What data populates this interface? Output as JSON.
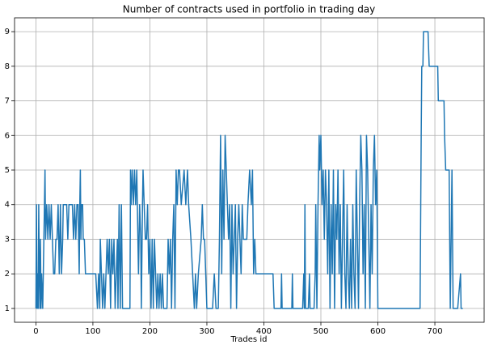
{
  "chart_data": {
    "type": "line",
    "title": "Number of contracts used in portfolio in trading day",
    "x_label": "Trades id",
    "x": [
      0,
      1,
      2,
      3,
      4,
      5,
      6,
      7,
      8,
      9,
      10,
      12,
      14,
      16,
      17,
      19,
      21,
      23,
      25,
      27,
      29,
      31,
      33,
      35,
      37,
      39,
      41,
      43,
      45,
      47,
      48,
      50,
      52,
      54,
      56,
      58,
      60,
      62,
      64,
      66,
      68,
      70,
      72,
      74,
      76,
      77,
      78,
      79,
      80,
      82,
      83,
      85,
      87,
      90,
      95,
      100,
      105,
      108,
      110,
      112,
      113,
      115,
      117,
      119,
      121,
      123,
      125,
      127,
      129,
      131,
      133,
      135,
      137,
      139,
      141,
      143,
      144,
      146,
      148,
      150,
      152,
      155,
      160,
      165,
      166,
      167,
      169,
      171,
      173,
      175,
      177,
      178,
      180,
      182,
      184,
      185,
      187,
      188,
      190,
      192,
      194,
      196,
      198,
      200,
      202,
      204,
      206,
      208,
      210,
      212,
      214,
      216,
      218,
      220,
      222,
      224,
      226,
      228,
      230,
      232,
      234,
      236,
      238,
      240,
      242,
      244,
      246,
      248,
      250,
      252,
      255,
      260,
      263,
      266,
      268,
      272,
      275,
      278,
      280,
      282,
      285,
      290,
      292,
      294,
      296,
      298,
      300,
      305,
      310,
      313,
      316,
      320,
      322,
      324,
      326,
      328,
      330,
      332,
      334,
      336,
      338,
      340,
      342,
      344,
      346,
      348,
      350,
      352,
      354,
      356,
      358,
      360,
      362,
      364,
      366,
      370,
      372,
      375,
      378,
      380,
      382,
      384,
      386,
      388,
      395,
      400,
      410,
      416,
      418,
      425,
      430,
      431,
      432,
      440,
      449,
      450,
      451,
      460,
      468,
      470,
      471,
      472,
      473,
      478,
      480,
      481,
      488,
      490,
      491,
      493,
      495,
      497,
      498,
      500,
      502,
      504,
      506,
      508,
      510,
      512,
      514,
      516,
      518,
      520,
      522,
      524,
      526,
      528,
      530,
      532,
      534,
      536,
      538,
      540,
      542,
      544,
      546,
      548,
      550,
      552,
      554,
      556,
      558,
      560,
      562,
      564,
      566,
      568,
      570,
      572,
      574,
      576,
      578,
      580,
      582,
      584,
      586,
      588,
      590,
      592,
      594,
      596,
      598,
      600,
      610,
      620,
      630,
      640,
      650,
      660,
      670,
      674,
      676,
      677,
      679,
      680,
      684,
      688,
      690,
      695,
      700,
      705,
      706,
      712,
      716,
      717,
      719,
      722,
      725,
      727,
      730,
      732,
      740,
      745,
      746,
      749
    ],
    "values": [
      1,
      4,
      1,
      2,
      1,
      4,
      2,
      1,
      3,
      1,
      2,
      1,
      3,
      5,
      3,
      4,
      3,
      4,
      3,
      4,
      3,
      2,
      2,
      3,
      3,
      4,
      2,
      4,
      2,
      3,
      4,
      4,
      4,
      4,
      3,
      4,
      4,
      4,
      4,
      3,
      4,
      3,
      4,
      4,
      2,
      4,
      5,
      3,
      4,
      4,
      3,
      3,
      2,
      2,
      2,
      2,
      2,
      1,
      2,
      1,
      3,
      2,
      1,
      2,
      1,
      2,
      3,
      2,
      3,
      1,
      3,
      2,
      3,
      1,
      2,
      3,
      1,
      4,
      1,
      4,
      1,
      1,
      1,
      1,
      5,
      4,
      5,
      4,
      5,
      4,
      5,
      4,
      2,
      4,
      3,
      1,
      4,
      5,
      4,
      3,
      3,
      4,
      2,
      3,
      1,
      3,
      1,
      3,
      2,
      1,
      2,
      1,
      2,
      1,
      2,
      1,
      1,
      1,
      1,
      3,
      2,
      3,
      1,
      3,
      4,
      1,
      5,
      4,
      5,
      5,
      4,
      5,
      4,
      5,
      4,
      3,
      2,
      1,
      2,
      1,
      2,
      3,
      4,
      3,
      3,
      2,
      1,
      1,
      1,
      2,
      1,
      1,
      3,
      6,
      2,
      5,
      3,
      6,
      5,
      4,
      3,
      4,
      1,
      4,
      2,
      3,
      4,
      1,
      3,
      4,
      3,
      2,
      4,
      3,
      3,
      3,
      4,
      5,
      4,
      5,
      2,
      3,
      2,
      2,
      2,
      2,
      2,
      2,
      1,
      1,
      1,
      2,
      1,
      1,
      1,
      2,
      1,
      1,
      1,
      2,
      1,
      4,
      1,
      1,
      2,
      1,
      1,
      2,
      4,
      1,
      4,
      6,
      5,
      6,
      4,
      5,
      3,
      5,
      4,
      2,
      5,
      1,
      4,
      2,
      5,
      1,
      4,
      3,
      5,
      2,
      4,
      1,
      3,
      5,
      2,
      1,
      4,
      2,
      1,
      3,
      1,
      4,
      2,
      1,
      5,
      3,
      1,
      4,
      6,
      5,
      2,
      4,
      1,
      6,
      5,
      3,
      1,
      4,
      2,
      5,
      6,
      4,
      5,
      1,
      1,
      1,
      1,
      1,
      1,
      1,
      1,
      1,
      6,
      8,
      8,
      9,
      9,
      9,
      8,
      8,
      8,
      8,
      7,
      7,
      7,
      6,
      5,
      5,
      5,
      1,
      5,
      1,
      1,
      2,
      1,
      1
    ],
    "color": "#1f77b4",
    "xlim": [
      -37.45,
      786.45
    ],
    "xticks": [
      0,
      100,
      200,
      300,
      400,
      500,
      600,
      700
    ],
    "ylim": [
      0.6,
      9.4
    ],
    "yticks": [
      1,
      2,
      3,
      4,
      5,
      6,
      7,
      8,
      9
    ],
    "grid": true
  }
}
